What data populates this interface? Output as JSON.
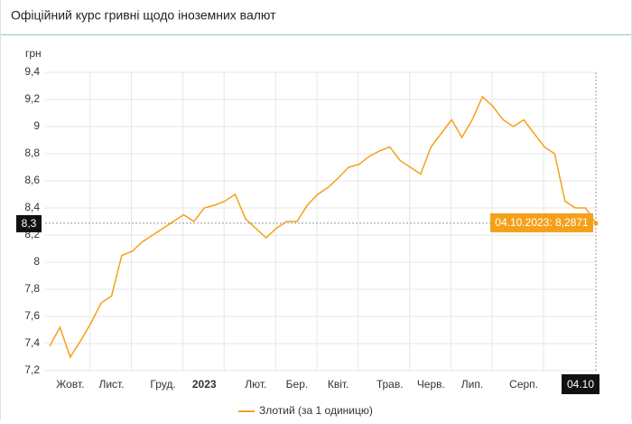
{
  "chart_data": {
    "type": "line",
    "title": "Офіційний курс гривні щодо іноземних валют",
    "y_label": "грн",
    "categories": [
      null,
      null,
      "Жовт.",
      null,
      null,
      null,
      "Лист.",
      null,
      null,
      null,
      null,
      "Груд.",
      null,
      null,
      null,
      "2023",
      null,
      null,
      null,
      null,
      "Лют.",
      null,
      null,
      null,
      "Бер.",
      null,
      null,
      null,
      "Квіт.",
      null,
      null,
      null,
      null,
      "Трав.",
      null,
      null,
      null,
      "Черв.",
      null,
      null,
      null,
      "Лип.",
      null,
      null,
      null,
      null,
      "Серп.",
      null,
      null,
      null,
      null,
      null,
      null,
      "04.10"
    ],
    "series": [
      {
        "name": "Злотий (за 1 одиницю)",
        "color": "#f5a01a",
        "values": [
          7.38,
          7.52,
          7.3,
          7.42,
          7.55,
          7.7,
          7.75,
          8.05,
          8.08,
          8.15,
          8.2,
          8.25,
          8.3,
          8.35,
          8.3,
          8.4,
          8.42,
          8.45,
          8.5,
          8.32,
          8.25,
          8.18,
          8.25,
          8.3,
          8.3,
          8.42,
          8.5,
          8.55,
          8.62,
          8.7,
          8.72,
          8.78,
          8.82,
          8.85,
          8.75,
          8.7,
          8.65,
          8.85,
          8.95,
          9.05,
          8.92,
          9.05,
          9.22,
          9.15,
          9.05,
          9.0,
          9.05,
          8.95,
          8.85,
          8.8,
          8.45,
          8.4,
          8.4,
          8.2871
        ]
      }
    ],
    "ylim": [
      7.2,
      9.4
    ],
    "yticks": [
      {
        "value": 7.2,
        "label": "7,2"
      },
      {
        "value": 7.4,
        "label": "7,4"
      },
      {
        "value": 7.6,
        "label": "7,6"
      },
      {
        "value": 7.8,
        "label": "7,8"
      },
      8,
      {
        "value": 8.2,
        "label": "8,2"
      },
      {
        "value": 8.4,
        "label": "8,4"
      },
      {
        "value": 8.6,
        "label": "8,6"
      },
      {
        "value": 8.8,
        "label": "8,8"
      },
      9,
      {
        "value": 9.2,
        "label": "9,2"
      },
      {
        "value": 9.4,
        "label": "9,4"
      }
    ],
    "grid": true,
    "cursor_y_label": "8,3",
    "tooltip": "04.10.2023: 8,2871",
    "bold_category": "2023"
  }
}
